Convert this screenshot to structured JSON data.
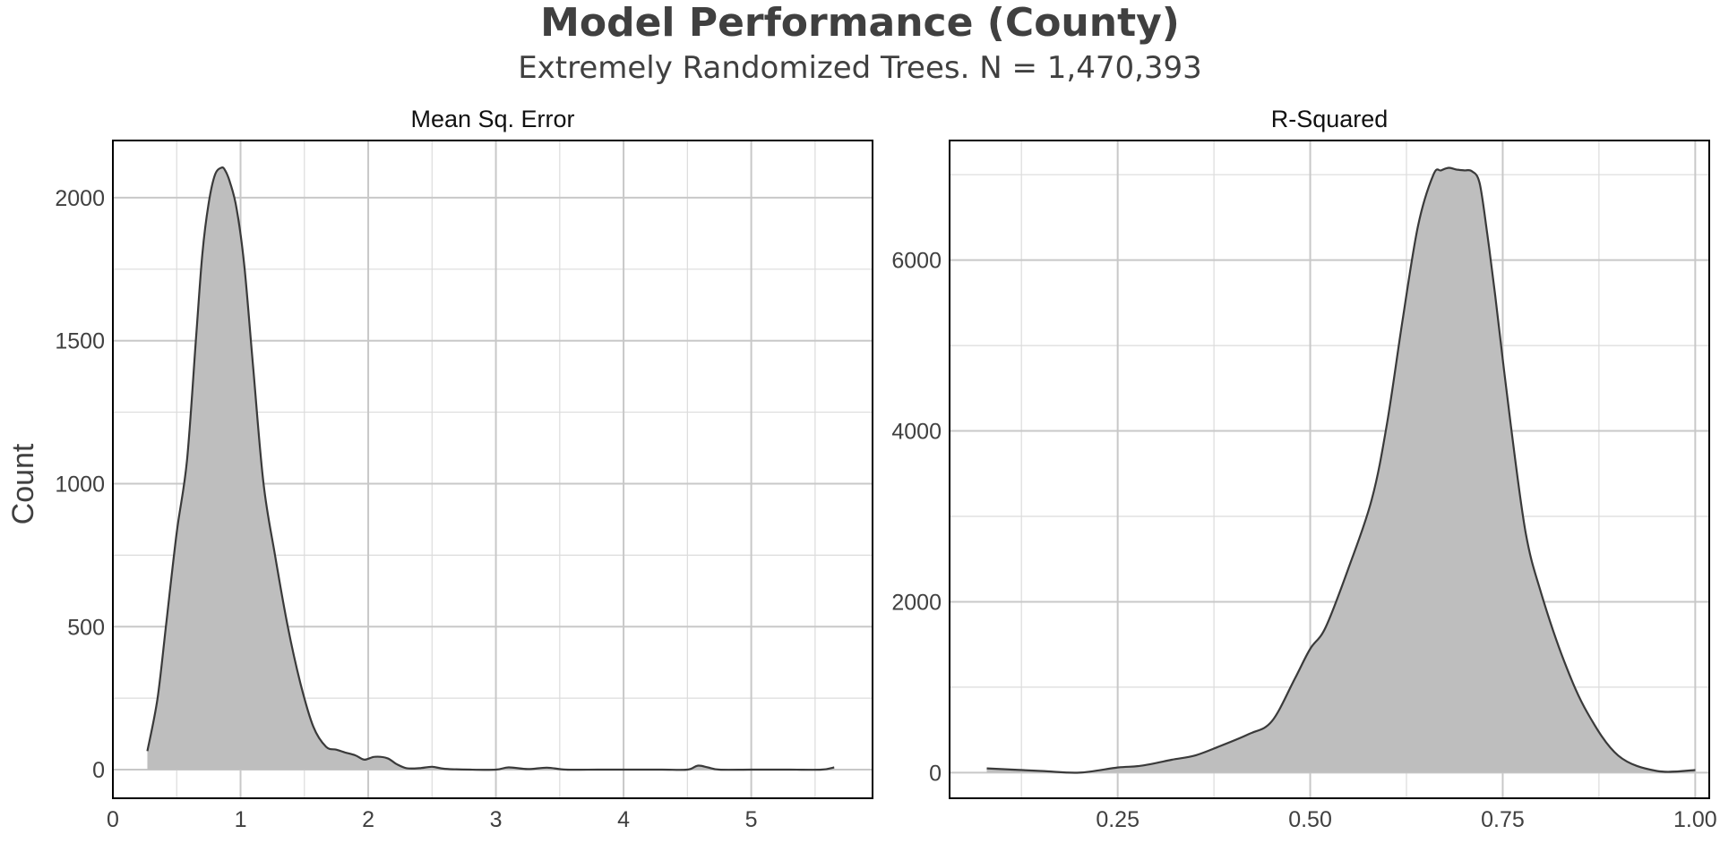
{
  "title": "Model Performance (County)",
  "subtitle": "Extremely Randomized Trees. N = 1,470,393",
  "ylabel": "Count",
  "colors": {
    "fill": "#bebebe",
    "stroke": "#3a3a3a",
    "grid_major": "#c8c8c8",
    "grid_minor": "#dcdcdc",
    "border": "#000000",
    "text": "#404040"
  },
  "chart_data": [
    {
      "type": "area",
      "panel": "Mean Sq. Error",
      "xlim": [
        0,
        5.95
      ],
      "ylim": [
        -100,
        2200
      ],
      "xticks": [
        0,
        1,
        2,
        3,
        4,
        5
      ],
      "xtick_labels": [
        "0",
        "1",
        "2",
        "3",
        "4",
        "5"
      ],
      "yticks": [
        0,
        500,
        1000,
        1500,
        2000
      ],
      "ytick_labels": [
        "0",
        "500",
        "1000",
        "1500",
        "2000"
      ],
      "grid": true,
      "x": [
        0.27,
        0.35,
        0.42,
        0.5,
        0.58,
        0.65,
        0.7,
        0.75,
        0.8,
        0.85,
        0.88,
        0.92,
        0.97,
        1.03,
        1.1,
        1.18,
        1.27,
        1.37,
        1.47,
        1.57,
        1.67,
        1.75,
        1.82,
        1.9,
        1.97,
        2.05,
        2.15,
        2.22,
        2.3,
        2.4,
        2.5,
        2.6,
        2.8,
        3.0,
        3.1,
        3.25,
        3.4,
        3.55,
        3.8,
        4.0,
        4.3,
        4.5,
        4.58,
        4.66,
        4.75,
        5.0,
        5.3,
        5.55,
        5.65
      ],
      "y": [
        65,
        250,
        520,
        830,
        1080,
        1500,
        1800,
        1980,
        2080,
        2105,
        2095,
        2050,
        1960,
        1760,
        1400,
        1000,
        750,
        500,
        300,
        150,
        80,
        70,
        60,
        50,
        35,
        45,
        40,
        20,
        5,
        5,
        10,
        3,
        0,
        0,
        8,
        2,
        7,
        0,
        0,
        0,
        0,
        0,
        14,
        8,
        0,
        0,
        0,
        0,
        8
      ]
    },
    {
      "type": "area",
      "panel": "R-Squared",
      "xlim": [
        0.0317,
        1.0182
      ],
      "ylim": [
        -300,
        7400
      ],
      "xticks": [
        0.25,
        0.5,
        0.75,
        1.0
      ],
      "xtick_labels": [
        "0.25",
        "0.50",
        "0.75",
        "1.00"
      ],
      "yticks": [
        0,
        2000,
        4000,
        6000
      ],
      "ytick_labels": [
        "0",
        "2000",
        "4000",
        "6000"
      ],
      "grid": true,
      "x": [
        0.08,
        0.15,
        0.2,
        0.25,
        0.28,
        0.32,
        0.35,
        0.38,
        0.42,
        0.45,
        0.48,
        0.5,
        0.52,
        0.55,
        0.58,
        0.6,
        0.62,
        0.64,
        0.66,
        0.67,
        0.68,
        0.69,
        0.7,
        0.71,
        0.72,
        0.73,
        0.74,
        0.76,
        0.78,
        0.8,
        0.83,
        0.86,
        0.9,
        0.95,
        1.0
      ],
      "y": [
        50,
        20,
        0,
        60,
        80,
        150,
        200,
        300,
        450,
        600,
        1100,
        1450,
        1700,
        2400,
        3200,
        4100,
        5300,
        6400,
        7000,
        7050,
        7080,
        7060,
        7050,
        7040,
        6900,
        6300,
        5600,
        4100,
        2800,
        2100,
        1300,
        700,
        200,
        20,
        30
      ]
    }
  ]
}
